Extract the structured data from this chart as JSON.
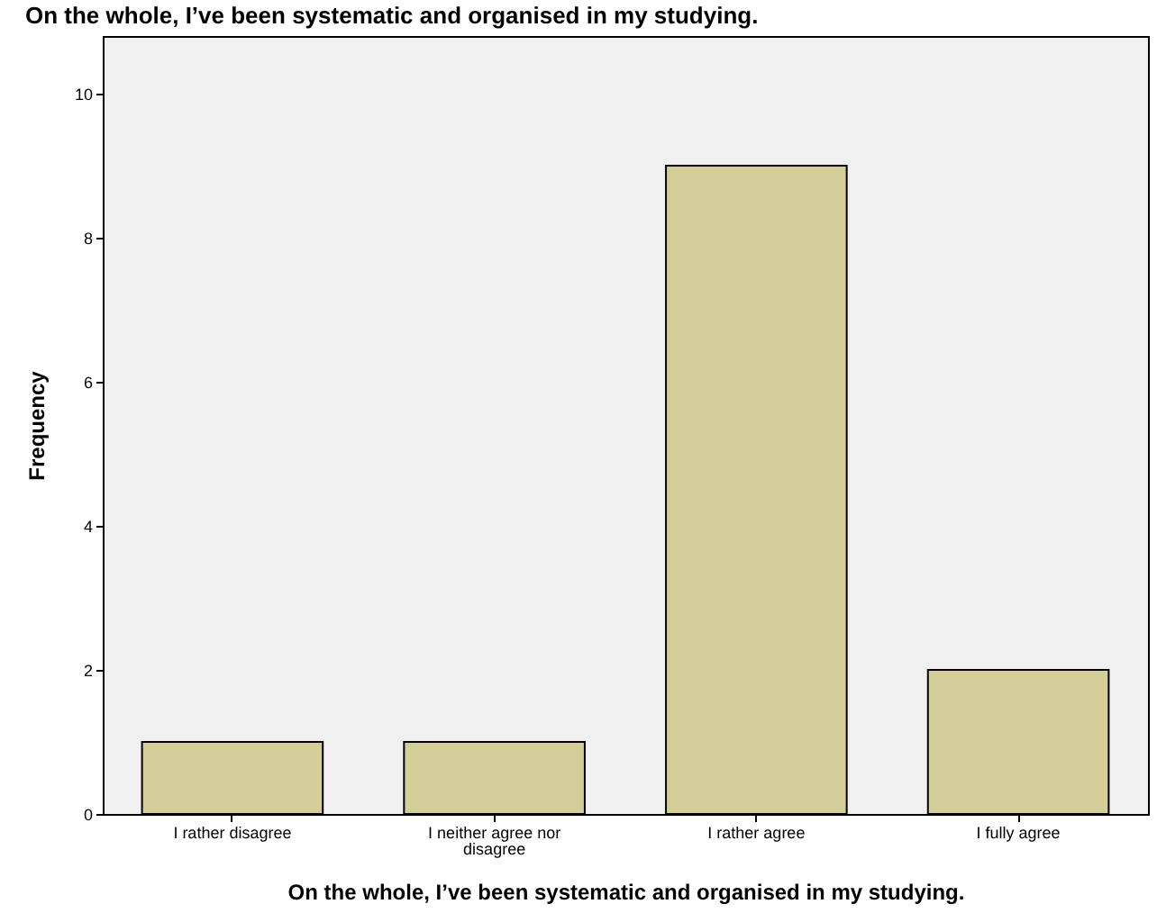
{
  "chart_data": {
    "type": "bar",
    "title": "On the whole, I’ve been systematic and organised in my studying.",
    "xlabel": "On the whole, I’ve been systematic and organised in my studying.",
    "ylabel": "Frequency",
    "categories": [
      "I rather disagree",
      "I neither agree nor disagree",
      "I rather agree",
      "I fully agree"
    ],
    "values": [
      1,
      1,
      9,
      2
    ],
    "color": "#d3ce97",
    "ylim": [
      0,
      10.8
    ],
    "yticks": [
      0,
      2,
      4,
      6,
      8,
      10
    ],
    "grid": false
  }
}
